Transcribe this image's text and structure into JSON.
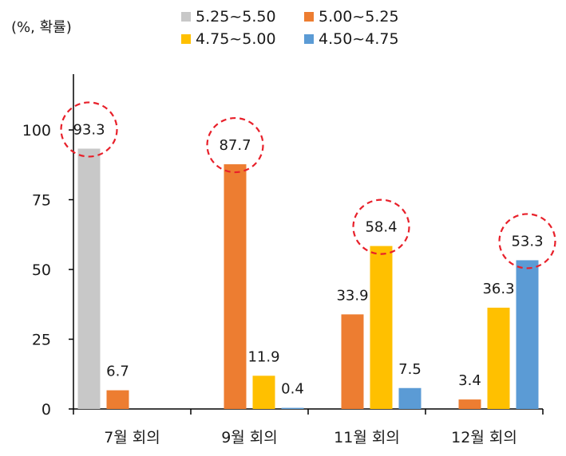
{
  "chart_data": {
    "type": "bar",
    "unit_label": "(%, 확률)",
    "categories": [
      "7월 회의",
      "9월 회의",
      "11월 회의",
      "12월 회의"
    ],
    "series": [
      {
        "name": "5.25~5.50",
        "color": "#c8c8c8",
        "values": [
          93.3,
          null,
          null,
          null
        ],
        "labels": [
          "93.3",
          "",
          "",
          ""
        ]
      },
      {
        "name": "5.00~5.25",
        "color": "#ed7d31",
        "values": [
          6.7,
          87.7,
          33.9,
          3.4
        ],
        "labels": [
          "6.7",
          "87.7",
          "33.9",
          "3.4"
        ]
      },
      {
        "name": "4.75~5.00",
        "color": "#ffc000",
        "values": [
          null,
          11.9,
          58.4,
          36.3
        ],
        "labels": [
          "",
          "11.9",
          "58.4",
          "36.3"
        ]
      },
      {
        "name": "4.50~4.75",
        "color": "#5b9bd5",
        "values": [
          null,
          0.4,
          7.5,
          53.3
        ],
        "labels": [
          "",
          "0.4",
          "7.5",
          "53.3"
        ]
      }
    ],
    "highlights": [
      {
        "category": 0,
        "series": 0
      },
      {
        "category": 1,
        "series": 1
      },
      {
        "category": 2,
        "series": 2
      },
      {
        "category": 3,
        "series": 3
      }
    ],
    "yticks": [
      0,
      25,
      50,
      75,
      100
    ],
    "ylim": [
      0,
      120
    ],
    "xlabel": "",
    "ylabel": "",
    "legend_position": "top",
    "grid": false
  }
}
